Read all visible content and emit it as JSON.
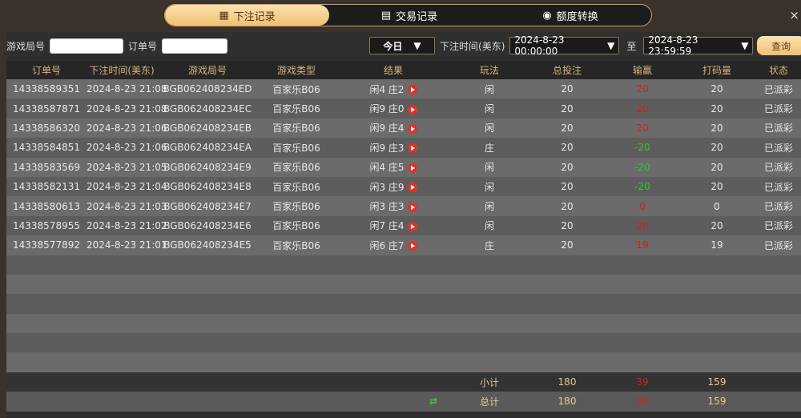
{
  "tabs": [
    {
      "label": "下注记录",
      "icon": "clipboard-icon",
      "active": true
    },
    {
      "label": "交易记录",
      "icon": "document-icon"
    },
    {
      "label": "额度转换",
      "icon": "coins-icon"
    }
  ],
  "close_label": "×",
  "filters": {
    "game_no_label": "游戏局号",
    "game_no_value": "",
    "order_no_label": "订单号",
    "order_no_value": "",
    "period": "今日",
    "time_label": "下注时间(美东)",
    "start": "2024-8-23 00:00:00",
    "to_label": "至",
    "end": "2024-8-23 23:59:59",
    "query": "查询"
  },
  "columns": [
    "订单号",
    "下注时间(美东)",
    "游戏局号",
    "游戏类型",
    "结果",
    "玩法",
    "总投注",
    "输赢",
    "打码量",
    "状态"
  ],
  "rows": [
    [
      "14338589351",
      "2024-8-23 21:08",
      "BGB062408234ED",
      "百家乐B06",
      "闲4 庄2",
      "闲",
      "20",
      "20",
      "20",
      "已派彩"
    ],
    [
      "14338587871",
      "2024-8-23 21:08",
      "BGB062408234EC",
      "百家乐B06",
      "闲9 庄0",
      "闲",
      "20",
      "20",
      "20",
      "已派彩"
    ],
    [
      "14338586320",
      "2024-8-23 21:06",
      "BGB062408234EB",
      "百家乐B06",
      "闲9 庄4",
      "闲",
      "20",
      "20",
      "20",
      "已派彩"
    ],
    [
      "14338584851",
      "2024-8-23 21:06",
      "BGB062408234EA",
      "百家乐B06",
      "闲9 庄3",
      "庄",
      "20",
      "-20",
      "20",
      "已派彩"
    ],
    [
      "14338583569",
      "2024-8-23 21:05",
      "BGB062408234E9",
      "百家乐B06",
      "闲4 庄5",
      "闲",
      "20",
      "-20",
      "20",
      "已派彩"
    ],
    [
      "14338582131",
      "2024-8-23 21:04",
      "BGB062408234E8",
      "百家乐B06",
      "闲3 庄9",
      "闲",
      "20",
      "-20",
      "20",
      "已派彩"
    ],
    [
      "14338580613",
      "2024-8-23 21:03",
      "BGB062408234E7",
      "百家乐B06",
      "闲3 庄3",
      "闲",
      "20",
      "0",
      "0",
      "已派彩"
    ],
    [
      "14338578955",
      "2024-8-23 21:02",
      "BGB062408234E6",
      "百家乐B06",
      "闲7 庄4",
      "闲",
      "20",
      "20",
      "20",
      "已派彩"
    ],
    [
      "14338577892",
      "2024-8-23 21:01",
      "BGB062408234E5",
      "百家乐B06",
      "闲6 庄7",
      "庄",
      "20",
      "19",
      "19",
      "已派彩"
    ]
  ],
  "subtotal": {
    "label": "小计",
    "bet": "180",
    "win": "39",
    "code": "159"
  },
  "total": {
    "label": "总计",
    "bet": "180",
    "win": "39",
    "code": "159",
    "icon": "refresh-icon"
  },
  "colors": {
    "win": "#cc2222",
    "loss": "#2ecc2e",
    "accent": "#f1bf72"
  }
}
